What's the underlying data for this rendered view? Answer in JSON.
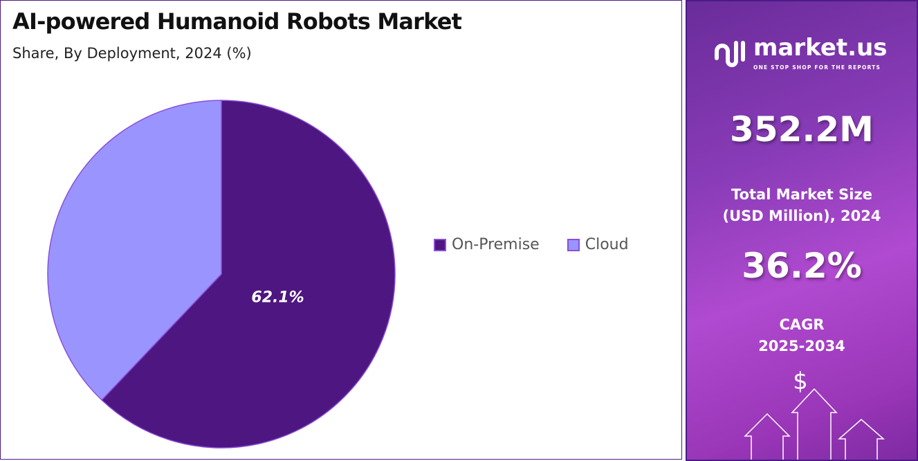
{
  "chart_data": {
    "type": "pie",
    "title": "AI-powered Humanoid Robots Market",
    "subtitle": "Share, By Deployment, 2024 (%)",
    "slices": [
      {
        "name": "On-Premise",
        "value": 62.1,
        "label": "62.1%",
        "color": "#4e1681"
      },
      {
        "name": "Cloud",
        "value": 37.9,
        "color": "#9a94ff"
      }
    ],
    "legend_position": "right"
  },
  "sidebar": {
    "brand": "market.us",
    "tagline": "ONE STOP SHOP FOR THE REPORTS",
    "market_size": "352.2M",
    "market_size_label_1": "Total Market Size",
    "market_size_label_2": "(USD Million), 2024",
    "cagr": "36.2%",
    "cagr_label_1": "CAGR",
    "cagr_label_2": "2025-2034",
    "dollar_symbol": "$"
  }
}
